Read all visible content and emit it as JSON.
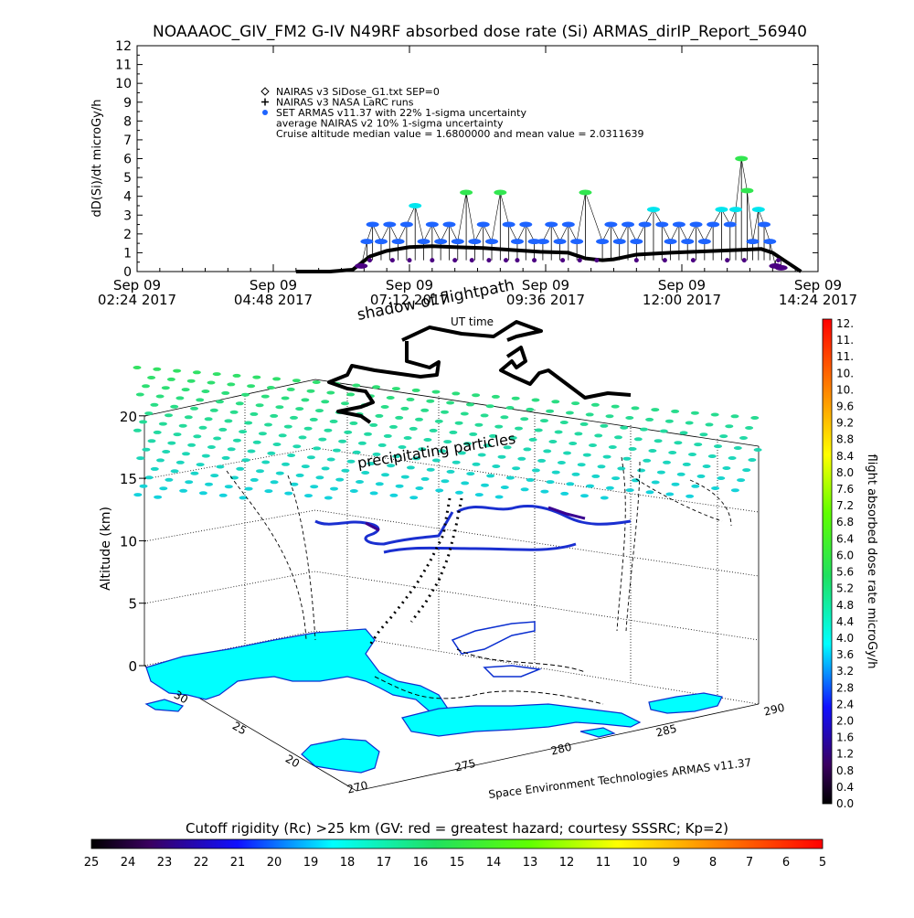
{
  "page_title": "NOAAAOC_GIV_FM2 G-IV   N49RF  absorbed dose rate (Si) ARMAS_dirIP_Report_56940",
  "chart_data": [
    {
      "type": "scatter",
      "ylabel": "dD(Si)/dt microGy/h",
      "ylim": [
        0,
        12
      ],
      "y_ticks": [
        "0",
        "1",
        "2",
        "3",
        "4",
        "5",
        "6",
        "7",
        "8",
        "9",
        "10",
        "11",
        "12"
      ],
      "x_ticks": [
        {
          "l1": "Sep 09",
          "l2": "02:24 2017",
          "t": 2.4
        },
        {
          "l1": "Sep 09",
          "l2": "04:48 2017",
          "t": 4.8
        },
        {
          "l1": "Sep 09",
          "l2": "07:12 2017",
          "t": 7.2
        },
        {
          "l1": "Sep 09",
          "l2": "09:36 2017",
          "t": 9.6
        },
        {
          "l1": "Sep 09",
          "l2": "12:00 2017",
          "t": 12.0
        },
        {
          "l1": "Sep 09",
          "l2": "14:24 2017",
          "t": 14.4
        }
      ],
      "xlim_hours": [
        2.4,
        14.4
      ],
      "legend": [
        {
          "symbol": "diamond",
          "text": "NAIRAS v3 SiDose_G1.txt SEP=0"
        },
        {
          "symbol": "plus",
          "text": "NAIRAS v3 NASA LaRC runs"
        },
        {
          "symbol": "dot",
          "text": "SET ARMAS v11.37 with 22% 1-sigma uncertainty"
        },
        {
          "symbol": "none",
          "text": "average NAIRAS v2 10% 1-sigma uncertainty"
        },
        {
          "symbol": "none",
          "text": "Cruise altitude median value = 1.6800000 and mean value = 2.0311639"
        }
      ],
      "nairas_series": {
        "name": "NAIRAS v3",
        "x": [
          5.2,
          5.8,
          6.2,
          6.5,
          6.8,
          7.2,
          7.6,
          8.0,
          8.5,
          9.0,
          9.5,
          10.0,
          10.3,
          10.6,
          10.8,
          11.2,
          11.8,
          12.2,
          12.6,
          13.0,
          13.4,
          13.6,
          13.9,
          14.1
        ],
        "values": [
          0,
          0,
          0.1,
          0.8,
          1.1,
          1.3,
          1.35,
          1.3,
          1.25,
          1.15,
          1.05,
          1.0,
          0.7,
          0.6,
          0.65,
          0.9,
          1.0,
          1.05,
          1.1,
          1.15,
          1.2,
          1.0,
          0.4,
          0
        ]
      },
      "armas_series": {
        "name": "SET ARMAS v11.37",
        "x": [
          6.35,
          6.45,
          6.55,
          6.7,
          6.85,
          7.0,
          7.15,
          7.3,
          7.45,
          7.6,
          7.75,
          7.9,
          8.05,
          8.2,
          8.35,
          8.5,
          8.65,
          8.8,
          8.95,
          9.1,
          9.25,
          9.4,
          9.55,
          9.7,
          9.85,
          10.0,
          10.15,
          10.3,
          10.6,
          10.75,
          10.9,
          11.05,
          11.2,
          11.35,
          11.5,
          11.65,
          11.8,
          11.95,
          12.1,
          12.25,
          12.4,
          12.55,
          12.7,
          12.85,
          12.95,
          13.05,
          13.15,
          13.25,
          13.35,
          13.45,
          13.55,
          13.65,
          13.75
        ],
        "values": [
          0.3,
          1.6,
          2.5,
          1.6,
          2.5,
          1.6,
          2.5,
          3.5,
          1.6,
          2.5,
          1.6,
          2.5,
          1.6,
          4.2,
          1.6,
          2.5,
          1.6,
          4.2,
          2.5,
          1.6,
          2.5,
          1.6,
          1.6,
          2.5,
          1.6,
          2.5,
          1.6,
          4.2,
          1.6,
          2.5,
          1.6,
          2.5,
          1.6,
          2.5,
          3.3,
          2.5,
          1.6,
          2.5,
          1.6,
          2.5,
          1.6,
          2.5,
          3.3,
          2.5,
          3.3,
          6.0,
          4.3,
          1.6,
          3.3,
          2.5,
          1.6,
          0.3,
          0.2
        ]
      },
      "low_points": {
        "x": [
          6.5,
          6.9,
          7.2,
          7.6,
          8.0,
          8.3,
          8.6,
          8.9,
          9.1,
          9.4,
          9.9,
          10.2,
          10.5,
          11.2,
          11.7,
          12.2,
          12.8,
          13.1,
          13.7
        ],
        "values": [
          0.6,
          0.6,
          0.6,
          0.6,
          0.6,
          0.6,
          0.6,
          0.6,
          0.6,
          0.6,
          0.6,
          0.6,
          0.6,
          0.6,
          0.6,
          0.6,
          0.6,
          0.6,
          0.6
        ]
      }
    },
    {
      "type": "scatter",
      "subtype": "3d-flight-track",
      "zlabel": "Altitude (km)",
      "z_ticks": [
        "0",
        "5",
        "10",
        "15",
        "20"
      ],
      "lat_ticks": [
        "20",
        "25",
        "30"
      ],
      "lon_ticks": [
        "270",
        "275",
        "280",
        "285",
        "290"
      ],
      "annotations": [
        "shadow of flightpath",
        "UT time",
        "precipitating particles"
      ],
      "credit": "Space Environment Technologies ARMAS v11.37"
    }
  ],
  "colorbar_right": {
    "label": "flight absorbed dose rate microGy/h",
    "ticks": [
      "12.",
      "11.",
      "11.",
      "10.",
      "10.",
      "9.6",
      "9.2",
      "8.8",
      "8.4",
      "8.0",
      "7.6",
      "7.2",
      "6.8",
      "6.4",
      "6.0",
      "5.6",
      "5.2",
      "4.8",
      "4.4",
      "4.0",
      "3.6",
      "3.2",
      "2.8",
      "2.4",
      "2.0",
      "1.6",
      "1.2",
      "0.8",
      "0.4",
      "0.0"
    ]
  },
  "colorbar_bottom": {
    "label": "Cutoff rigidity (Rc) >25 km (GV: red = greatest hazard; courtesy SSSRC; Kp=2)",
    "ticks": [
      "25",
      "24",
      "23",
      "22",
      "21",
      "20",
      "19",
      "18",
      "17",
      "16",
      "15",
      "14",
      "13",
      "12",
      "11",
      "10",
      "9",
      "8",
      "7",
      "6",
      "5"
    ]
  },
  "colors": {
    "land": "#00ffff",
    "track": "#000000",
    "armas_purple": "#4b0082",
    "armas_blue": "#1e64ff",
    "armas_cyan": "#00e5ee",
    "armas_green": "#32e650",
    "grid": "#000000"
  }
}
